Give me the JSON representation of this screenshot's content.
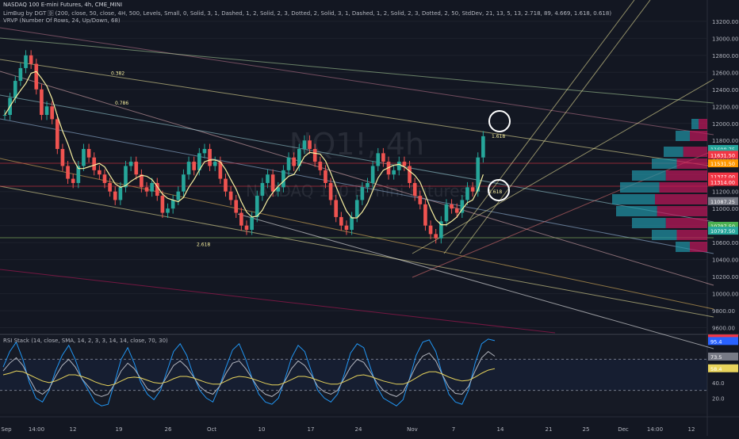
{
  "header": {
    "symbol_line": "NASDAQ 100 E-mini Futures, 4h, CME_MINI",
    "indicator_line": "LimBug by DGT 🄳 (200, close, 50, close, 4H, 500, Levels, Small, 0, Solid, 3, 1, Dashed, 1, 2, Solid, 2, 3, Dotted, 2, Solid, 3, 1, Dashed, 1, 2, Solid, 2, 3, Dotted, 2, 50, StdDev, 21, 13, 5, 13, 2.718, 89, 4.669, 1.618, 0.618)",
    "vrvp_line": "VRVP (Number Of Rows, 24, Up/Down, 68)"
  },
  "watermark": {
    "symbol": "NQ1!, 4h",
    "name": "NASDAQ 100 E-mini Futures"
  },
  "rsi_panel": {
    "legend": "RSI Stack (14, close, SMA, 14, 2, 3, 3, 14, 14, close, 70, 30)"
  },
  "chart_data": [
    {
      "type": "candlestick",
      "title": "",
      "x_ticks": [
        "Sep",
        "14:00",
        "12",
        "19",
        "26",
        "Oct",
        "10",
        "17",
        "24",
        "Nov",
        "7",
        "14",
        "21",
        "25",
        "Dec",
        "14:00",
        "12"
      ],
      "y_ticks": [
        9600,
        9800,
        10000,
        10200,
        10400,
        10600,
        10800,
        11000,
        11200,
        11400,
        11600,
        11800,
        12000,
        12200,
        12400,
        12600,
        12800,
        13000,
        13200
      ],
      "ylim": [
        9540,
        13450
      ],
      "price_line_close": [
        12100,
        12300,
        12500,
        12650,
        12800,
        12700,
        12400,
        12100,
        12200,
        12050,
        11700,
        11500,
        11350,
        11300,
        11500,
        11700,
        11600,
        11450,
        11400,
        11300,
        11200,
        11100,
        11250,
        11500,
        11550,
        11400,
        11250,
        11200,
        11300,
        11150,
        10950,
        11000,
        11100,
        11200,
        11400,
        11550,
        11450,
        11650,
        11700,
        11500,
        11550,
        11350,
        11200,
        11100,
        10950,
        10800,
        10750,
        10900,
        11150,
        11300,
        11400,
        11200,
        11250,
        11450,
        11600,
        11500,
        11700,
        11800,
        11700,
        11550,
        11450,
        11300,
        11100,
        10900,
        10800,
        10750,
        10900,
        11100,
        11250,
        11300,
        11500,
        11650,
        11550,
        11400,
        11450,
        11550,
        11500,
        11300,
        11150,
        11050,
        10800,
        10700,
        10650,
        10850,
        11050,
        11000,
        10950,
        11100,
        11250,
        11200,
        11600,
        11850
      ],
      "price_labels": [
        {
          "label": "NQZ2022",
          "value": 11698.75,
          "color": "#2962ff"
        },
        {
          "label": "11698.75",
          "value": 11698.75,
          "color": "#26a69a"
        },
        {
          "label": "01:20:18",
          "value": 11650,
          "color": "#26a69a"
        },
        {
          "label": "11631.50",
          "value": 11631.5,
          "color": "#f23645"
        },
        {
          "label": "11531.50",
          "value": 11531.5,
          "color": "#ff9800"
        },
        {
          "label": "11377.00",
          "value": 11377,
          "color": "#f23645"
        },
        {
          "label": "11314.00",
          "value": 11314,
          "color": "#f23645"
        },
        {
          "label": "11087.25",
          "value": 11087.25,
          "color": "#787b86"
        },
        {
          "label": "10797.50",
          "value": 10797.5,
          "color": "#4caf50"
        },
        {
          "label": "10797.50",
          "value": 10740,
          "color": "#26a69a"
        }
      ],
      "fib_labels": [
        {
          "label": "1.618",
          "value": 11830
        },
        {
          "label": "0.382",
          "value": 12570
        },
        {
          "label": "0.786",
          "value": 12220
        },
        {
          "label": "2.618",
          "value": 10560
        },
        {
          "label": "1.618",
          "value": 11180
        }
      ]
    },
    {
      "type": "line",
      "title": "",
      "y_ticks": [
        20.0,
        40.0,
        60.0
      ],
      "ylim": [
        0,
        100
      ],
      "levels": [
        70,
        30
      ],
      "value_labels": [
        {
          "label": "96.8",
          "value": 96.8,
          "color": "#f23645"
        },
        {
          "label": "95.4",
          "value": 93.5,
          "color": "#2962ff"
        },
        {
          "label": "73.5",
          "value": 73.5,
          "color": "#787b86"
        },
        {
          "label": "58.4",
          "value": 58.4,
          "color": "#e8d45c"
        }
      ],
      "series": [
        {
          "values": [
            60,
            80,
            92,
            70,
            40,
            20,
            15,
            30,
            55,
            75,
            88,
            70,
            45,
            30,
            15,
            10,
            12,
            40,
            70,
            85,
            65,
            40,
            25,
            18,
            30,
            55,
            80,
            90,
            75,
            50,
            30,
            20,
            15,
            35,
            60,
            82,
            90,
            70,
            45,
            25,
            15,
            12,
            20,
            45,
            72,
            88,
            80,
            55,
            30,
            20,
            15,
            25,
            50,
            78,
            90,
            85,
            60,
            35,
            20,
            15,
            10,
            18,
            45,
            75,
            92,
            95,
            80,
            50,
            25,
            15,
            12,
            30,
            65,
            90,
            96,
            94
          ]
        },
        {
          "values": [
            55,
            65,
            72,
            62,
            45,
            30,
            25,
            32,
            48,
            62,
            70,
            60,
            45,
            35,
            25,
            22,
            25,
            38,
            55,
            65,
            58,
            45,
            32,
            28,
            34,
            48,
            62,
            68,
            60,
            48,
            35,
            28,
            25,
            35,
            52,
            65,
            68,
            58,
            45,
            32,
            25,
            22,
            28,
            42,
            58,
            68,
            62,
            50,
            35,
            28,
            25,
            30,
            45,
            60,
            70,
            66,
            54,
            40,
            30,
            25,
            22,
            28,
            44,
            62,
            74,
            78,
            68,
            50,
            34,
            26,
            25,
            35,
            55,
            72,
            80,
            74
          ]
        },
        {
          "values": [
            50,
            52,
            55,
            54,
            50,
            46,
            42,
            40,
            42,
            46,
            50,
            50,
            48,
            45,
            41,
            38,
            36,
            38,
            42,
            46,
            47,
            46,
            43,
            40,
            39,
            41,
            45,
            48,
            48,
            46,
            43,
            40,
            38,
            38,
            42,
            46,
            48,
            47,
            45,
            42,
            39,
            37,
            37,
            40,
            44,
            48,
            48,
            46,
            43,
            40,
            38,
            38,
            41,
            45,
            49,
            50,
            48,
            45,
            42,
            40,
            38,
            38,
            41,
            46,
            51,
            54,
            54,
            51,
            47,
            44,
            42,
            43,
            47,
            52,
            56,
            58
          ]
        }
      ]
    }
  ]
}
